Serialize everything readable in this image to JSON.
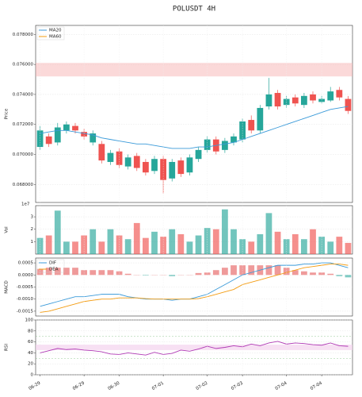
{
  "chart_data": [
    {
      "type": "candlestick",
      "title": "POLUSDT  4H",
      "ylabel": "Price",
      "ylim": [
        0.0668,
        0.0786
      ],
      "yticks": [
        {
          "value": 0.068,
          "label": "0.068000"
        },
        {
          "value": 0.07,
          "label": "0.070000"
        },
        {
          "value": 0.072,
          "label": "0.072000"
        },
        {
          "value": 0.074,
          "label": "0.074000"
        },
        {
          "value": 0.076,
          "label": "0.076000"
        },
        {
          "value": 0.078,
          "label": "0.078000"
        }
      ],
      "grid": true,
      "legend": "upper left",
      "up_color": "#26a69a",
      "down_color": "#ef5350",
      "zones": [
        {
          "range": [
            0.0752,
            0.0761
          ],
          "color": "#f8b4b4"
        }
      ],
      "open": [
        0.0705,
        0.0712,
        0.0708,
        0.0716,
        0.0719,
        0.0715,
        0.0708,
        0.0707,
        0.0695,
        0.0702,
        0.0692,
        0.0699,
        0.0695,
        0.0689,
        0.0697,
        0.0684,
        0.0696,
        0.0688,
        0.0697,
        0.0703,
        0.071,
        0.0703,
        0.0708,
        0.071,
        0.0723,
        0.0716,
        0.0732,
        0.0741,
        0.0733,
        0.0738,
        0.0733,
        0.074,
        0.0735,
        0.0736,
        0.0743,
        0.0737
      ],
      "high": [
        0.0719,
        0.0714,
        0.0721,
        0.0722,
        0.0721,
        0.0717,
        0.0716,
        0.0709,
        0.0703,
        0.0704,
        0.07,
        0.0701,
        0.0697,
        0.0699,
        0.0699,
        0.0697,
        0.0698,
        0.07,
        0.0705,
        0.0712,
        0.0712,
        0.0711,
        0.0714,
        0.0724,
        0.0726,
        0.0733,
        0.0751,
        0.0743,
        0.0739,
        0.074,
        0.0741,
        0.0742,
        0.0739,
        0.0745,
        0.0745,
        0.0739
      ],
      "low": [
        0.0703,
        0.0705,
        0.0706,
        0.0714,
        0.0714,
        0.071,
        0.0706,
        0.0694,
        0.0693,
        0.0691,
        0.069,
        0.0689,
        0.0686,
        0.0687,
        0.0674,
        0.0682,
        0.0685,
        0.0686,
        0.0695,
        0.0701,
        0.07,
        0.0701,
        0.0706,
        0.0708,
        0.0714,
        0.0714,
        0.073,
        0.073,
        0.0731,
        0.0732,
        0.0731,
        0.0734,
        0.0734,
        0.0735,
        0.0736,
        0.0727
      ],
      "close": [
        0.0716,
        0.0707,
        0.0718,
        0.072,
        0.0716,
        0.0712,
        0.0714,
        0.0696,
        0.0701,
        0.0693,
        0.0698,
        0.0691,
        0.0688,
        0.0697,
        0.0683,
        0.0695,
        0.0687,
        0.0698,
        0.0703,
        0.071,
        0.0702,
        0.0709,
        0.0712,
        0.0722,
        0.0716,
        0.0731,
        0.074,
        0.0732,
        0.0737,
        0.0734,
        0.0739,
        0.0736,
        0.0737,
        0.0742,
        0.0738,
        0.0729
      ],
      "series": [
        {
          "name": "MA20",
          "color": "#3a9ad9",
          "values": [
            0.0714,
            0.0715,
            0.0716,
            0.0716,
            0.0715,
            0.0714,
            0.0713,
            0.0711,
            0.071,
            0.0709,
            0.0708,
            0.0707,
            0.0707,
            0.0706,
            0.0705,
            0.0704,
            0.0704,
            0.0704,
            0.0705,
            0.0705,
            0.0706,
            0.0707,
            0.0708,
            0.071,
            0.0712,
            0.0714,
            0.0716,
            0.0718,
            0.072,
            0.0722,
            0.0724,
            0.0726,
            0.0728,
            0.073,
            0.0731,
            0.0732
          ]
        },
        {
          "name": "MA60",
          "color": "#f39c12",
          "values": [
            null,
            null,
            null,
            null,
            null,
            null,
            null,
            null,
            null,
            null,
            null,
            null,
            null,
            null,
            null,
            null,
            null,
            null,
            null,
            null,
            null,
            null,
            null,
            null,
            null,
            null,
            null,
            null,
            null,
            null,
            null,
            null,
            null,
            null,
            null,
            null
          ]
        }
      ]
    },
    {
      "type": "bar",
      "ylabel": "Vol",
      "offset_label": "1e7",
      "ylim": [
        0,
        3.9
      ],
      "yticks": [
        1,
        2,
        3
      ],
      "grid": true,
      "values": [
        1.3,
        1.5,
        3.5,
        1.0,
        1.0,
        1.5,
        2.0,
        1.0,
        2.0,
        1.5,
        1.2,
        2.5,
        1.3,
        1.8,
        1.4,
        2.0,
        1.6,
        1.0,
        1.5,
        2.1,
        2.0,
        3.6,
        2.0,
        1.2,
        1.0,
        1.6,
        3.3,
        1.8,
        1.2,
        1.6,
        1.2,
        2.0,
        1.4,
        1.0,
        1.4,
        0.9
      ]
    },
    {
      "type": "combo",
      "ylabel": "MACD",
      "ylim": [
        -0.0017,
        0.0007
      ],
      "yticks": [
        {
          "value": -0.0015,
          "label": "-0.0015"
        },
        {
          "value": -0.001,
          "label": "-0.0010"
        },
        {
          "value": -0.0005,
          "label": "-0.0005"
        },
        {
          "value": 0,
          "label": "0.0000"
        },
        {
          "value": 0.0005,
          "label": "0.0005"
        }
      ],
      "grid": true,
      "legend": "upper left",
      "hist_pos_color": "#ef9a9a",
      "hist_neg_color": "#80cbc4",
      "histogram": [
        0.00025,
        0.0003,
        0.0003,
        0.0003,
        0.0003,
        0.0002,
        0.0002,
        0.0002,
        0.0002,
        0.00015,
        5e-05,
        0.0,
        -2e-05,
        0.0,
        0.0,
        -5e-05,
        0.0,
        0.0,
        8e-05,
        0.0001,
        0.0002,
        0.0003,
        0.0004,
        0.0004,
        0.0004,
        0.0004,
        0.0004,
        0.0004,
        0.0003,
        0.0002,
        0.00015,
        0.0001,
        0.0001,
        5e-05,
        -5e-05,
        -0.0001
      ],
      "series": [
        {
          "name": "DIF",
          "color": "#3a9ad9",
          "values": [
            -0.0013,
            -0.0012,
            -0.0011,
            -0.001,
            -0.0009,
            -0.0009,
            -0.00085,
            -0.0008,
            -0.0008,
            -0.0008,
            -0.0009,
            -0.00095,
            -0.001,
            -0.001,
            -0.001,
            -0.00105,
            -0.001,
            -0.001,
            -0.0009,
            -0.0008,
            -0.0006,
            -0.0004,
            -0.0002,
            0.0,
            0.0001,
            0.0002,
            0.0003,
            0.0004,
            0.0004,
            0.0004,
            0.00045,
            0.00045,
            0.0005,
            0.0005,
            0.0004,
            0.0003
          ]
        },
        {
          "name": "DEA",
          "color": "#f39c12",
          "values": [
            -0.00155,
            -0.0015,
            -0.0014,
            -0.0013,
            -0.0012,
            -0.0011,
            -0.00105,
            -0.001,
            -0.001,
            -0.00095,
            -0.00095,
            -0.00095,
            -0.00098,
            -0.001,
            -0.001,
            -0.001,
            -0.001,
            -0.001,
            -0.00098,
            -0.0009,
            -0.0008,
            -0.0007,
            -0.0006,
            -0.0004,
            -0.0003,
            -0.0002,
            -0.0001,
            0.0,
            0.0001,
            0.0002,
            0.0003,
            0.00035,
            0.0004,
            0.00045,
            0.00045,
            0.0004
          ]
        }
      ]
    },
    {
      "type": "line",
      "ylabel": "RSI",
      "ylim": [
        0,
        100
      ],
      "yticks": [
        0,
        20,
        40,
        60,
        80,
        100
      ],
      "grid": true,
      "band": {
        "range": [
          45,
          55
        ],
        "color": "#f3d3ee"
      },
      "hlines": [
        30,
        70
      ],
      "series": [
        {
          "color": "#b03ab5",
          "values": [
            40,
            44,
            48,
            46,
            47,
            45,
            44,
            42,
            38,
            37,
            40,
            38,
            36,
            41,
            37,
            39,
            45,
            43,
            47,
            52,
            48,
            50,
            53,
            51,
            56,
            53,
            58,
            61,
            56,
            58,
            57,
            55,
            54,
            58,
            53,
            52
          ]
        }
      ],
      "xticks": [
        {
          "value": 0,
          "label": "06-29"
        },
        {
          "value": 5,
          "label": "06-29"
        },
        {
          "value": 9,
          "label": "06-30"
        },
        {
          "value": 14,
          "label": "07-01"
        },
        {
          "value": 19,
          "label": "07-02"
        },
        {
          "value": 23,
          "label": "07-03"
        },
        {
          "value": 28,
          "label": "07-04"
        },
        {
          "value": 32,
          "label": "07-04"
        }
      ]
    }
  ]
}
